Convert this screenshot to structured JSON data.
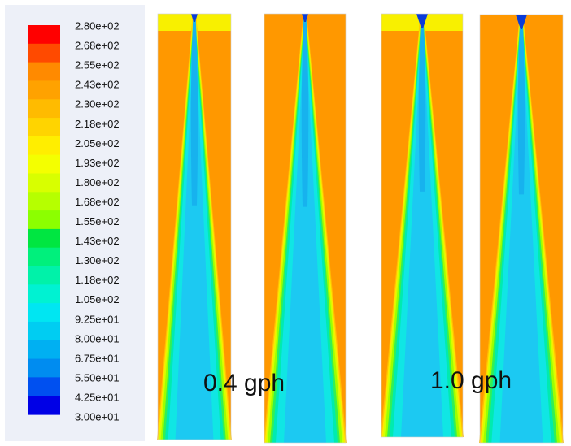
{
  "legend": {
    "labels": [
      "2.80e+02",
      "2.68e+02",
      "2.55e+02",
      "2.43e+02",
      "2.30e+02",
      "2.18e+02",
      "2.05e+02",
      "1.93e+02",
      "1.80e+02",
      "1.68e+02",
      "1.55e+02",
      "1.43e+02",
      "1.30e+02",
      "1.18e+02",
      "1.05e+02",
      "9.25e+01",
      "8.00e+01",
      "6.75e+01",
      "5.50e+01",
      "4.25e+01",
      "3.00e+01"
    ],
    "colors": [
      "#ff0000",
      "#ff4a00",
      "#ff8a00",
      "#ffa200",
      "#ffbb00",
      "#ffd400",
      "#ffee00",
      "#f4ff00",
      "#d8ff00",
      "#b6ff00",
      "#8cff00",
      "#00e641",
      "#00f07c",
      "#00f2a9",
      "#00f2d2",
      "#00e6f2",
      "#00cdf2",
      "#00b0f2",
      "#008cf0",
      "#0050f0",
      "#0000e6"
    ]
  },
  "captions": {
    "left": "0.4 gph",
    "right": "1.0 gph"
  }
}
